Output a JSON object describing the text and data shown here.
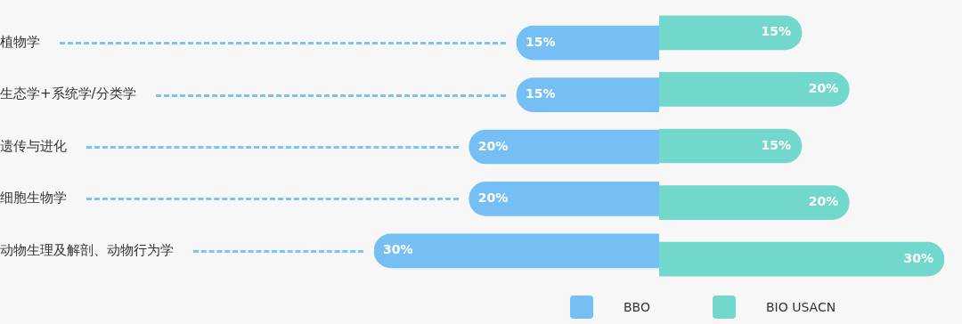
{
  "chart_data": [
    {
      "type": "bar",
      "orientation": "horizontal",
      "categories": [
        "植物学",
        "生态学+系统学/分类学",
        "遗传与进化",
        "细胞生物学",
        "动物生理及解剖、动物行为学"
      ],
      "xlim": [
        30,
        0
      ],
      "series": [
        {
          "name": "BBO",
          "color": "#75bff5",
          "values": [
            15,
            15,
            20,
            20,
            30
          ],
          "value_labels": [
            "15%",
            "15%",
            "20%",
            "20%",
            "30%"
          ]
        }
      ],
      "legend": "bottom",
      "grid": "y"
    },
    {
      "type": "bar",
      "orientation": "horizontal",
      "categories": [
        null,
        null,
        null,
        null,
        null
      ],
      "xlim": [
        0,
        30
      ],
      "tick_labels": false,
      "series": [
        {
          "name": "BIO USACN",
          "color": "#73d8cc",
          "values": [
            15,
            20,
            15,
            20,
            30
          ],
          "value_labels": [
            "15%",
            "20%",
            "15%",
            "20%",
            "30%"
          ]
        }
      ],
      "legend": "bottom"
    }
  ]
}
